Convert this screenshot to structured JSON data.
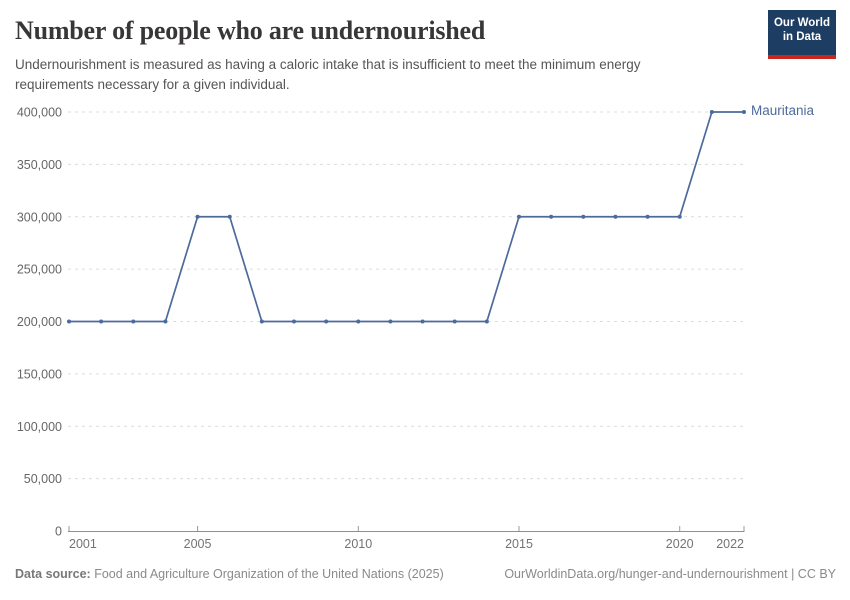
{
  "header": {
    "title": "Number of people who are undernourished",
    "subtitle": "Undernourishment is measured as having a caloric intake that is insufficient to meet the minimum energy requirements necessary for a given individual.",
    "logo": {
      "line1": "Our World",
      "line2": "in Data",
      "bg_color": "#1d3d63",
      "accent_color": "#c9281e"
    }
  },
  "chart_data": {
    "type": "line",
    "title": "Number of people who are undernourished",
    "xlabel": "",
    "ylabel": "",
    "xlim": [
      2001,
      2022
    ],
    "ylim": [
      0,
      400000
    ],
    "x_ticks": [
      2001,
      2005,
      2010,
      2015,
      2020,
      2022
    ],
    "y_ticks": [
      0,
      50000,
      100000,
      150000,
      200000,
      250000,
      300000,
      350000,
      400000
    ],
    "grid": "horizontal-dashed",
    "legend_position": "end-of-line-label",
    "series": [
      {
        "name": "Mauritania",
        "color": "#4C6A9C",
        "x": [
          2001,
          2002,
          2003,
          2004,
          2005,
          2006,
          2007,
          2008,
          2009,
          2010,
          2011,
          2012,
          2013,
          2014,
          2015,
          2016,
          2017,
          2018,
          2019,
          2020,
          2021,
          2022
        ],
        "values": [
          200000,
          200000,
          200000,
          200000,
          300000,
          300000,
          200000,
          200000,
          200000,
          200000,
          200000,
          200000,
          200000,
          200000,
          300000,
          300000,
          300000,
          300000,
          300000,
          300000,
          400000,
          400000
        ]
      }
    ]
  },
  "footer": {
    "datasource_label": "Data source:",
    "datasource_value": "Food and Agriculture Organization of the United Nations (2025)",
    "link": "OurWorldinData.org/hunger-and-undernourishment",
    "license_suffix": " | CC BY"
  }
}
